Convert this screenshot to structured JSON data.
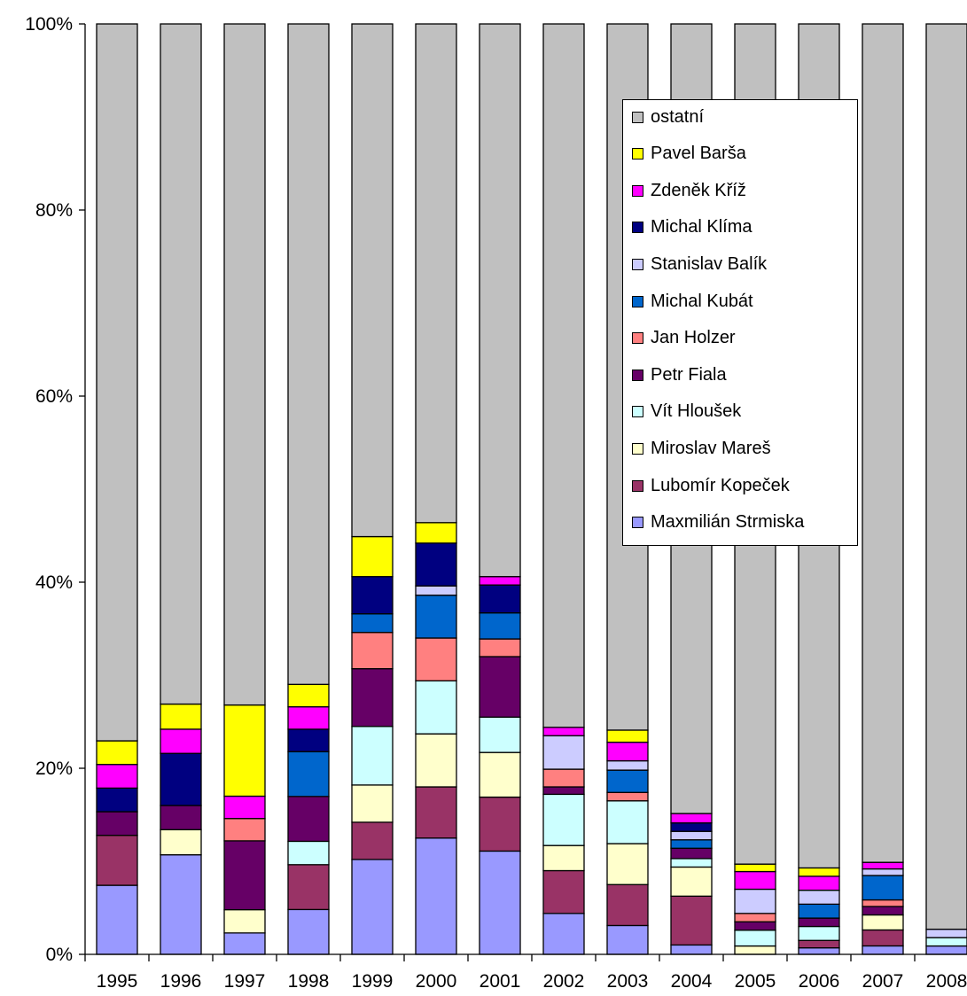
{
  "chart_data": {
    "type": "bar",
    "stacked": true,
    "normalized": true,
    "title": "",
    "xlabel": "",
    "ylabel": "",
    "ylim": [
      0,
      100
    ],
    "y_ticks": [
      "0%",
      "20%",
      "40%",
      "60%",
      "80%",
      "100%"
    ],
    "legend_position": "top-right",
    "categories": [
      "1995",
      "1996",
      "1997",
      "1998",
      "1999",
      "2000",
      "2001",
      "2002",
      "2003",
      "2004",
      "2005",
      "2006",
      "2007",
      "2008"
    ],
    "series": [
      {
        "name": "Maxmilián Strmiska",
        "color": "#9999FF",
        "values": [
          7.6,
          10.7,
          2.3,
          4.8,
          10.2,
          12.5,
          11.1,
          4.4,
          3.1,
          1.0,
          0.0,
          0.7,
          0.9,
          0.9
        ]
      },
      {
        "name": "Lubomír Kopeček",
        "color": "#993366",
        "values": [
          5.5,
          0.0,
          0.0,
          4.8,
          4.0,
          5.5,
          5.8,
          4.6,
          4.4,
          5.2,
          0.0,
          0.8,
          1.7,
          0.0
        ]
      },
      {
        "name": "Miroslav Mareš",
        "color": "#FFFFCC",
        "values": [
          0.0,
          2.7,
          2.5,
          0.0,
          4.0,
          5.7,
          4.8,
          2.7,
          4.4,
          3.1,
          0.9,
          0.0,
          1.6,
          0.0
        ]
      },
      {
        "name": "Vít Hloušek",
        "color": "#CCFFFF",
        "values": [
          0.0,
          0.0,
          0.0,
          2.5,
          6.3,
          5.7,
          3.8,
          5.5,
          4.6,
          0.9,
          1.7,
          1.5,
          0.0,
          0.9
        ]
      },
      {
        "name": "Petr Fiala",
        "color": "#660066",
        "values": [
          2.6,
          2.6,
          7.4,
          4.8,
          6.2,
          0.0,
          6.5,
          0.8,
          0.0,
          1.1,
          0.9,
          0.9,
          0.9,
          0.0
        ]
      },
      {
        "name": "Jan Holzer",
        "color": "#FF8080",
        "values": [
          0.0,
          0.0,
          2.4,
          0.0,
          3.9,
          4.6,
          1.9,
          1.9,
          0.9,
          0.0,
          0.9,
          0.0,
          0.7,
          0.0
        ]
      },
      {
        "name": "Michal Kubát",
        "color": "#0066CC",
        "values": [
          0.0,
          0.0,
          0.0,
          4.8,
          2.0,
          4.6,
          2.8,
          0.0,
          2.4,
          0.9,
          0.0,
          1.5,
          2.6,
          0.0
        ]
      },
      {
        "name": "Stanislav Balík",
        "color": "#CCCCFF",
        "values": [
          0.0,
          0.0,
          0.0,
          0.0,
          0.0,
          1.0,
          0.0,
          3.6,
          1.0,
          0.9,
          2.6,
          1.5,
          0.7,
          0.9
        ]
      },
      {
        "name": "Michal Klíma",
        "color": "#000080",
        "values": [
          2.6,
          5.6,
          0.0,
          2.4,
          4.0,
          4.6,
          3.0,
          0.0,
          0.0,
          0.9,
          0.0,
          0.0,
          0.0,
          0.0
        ]
      },
      {
        "name": "Zdeněk Kříž",
        "color": "#FF00FF",
        "values": [
          2.6,
          2.6,
          2.4,
          2.4,
          0.0,
          0.0,
          0.9,
          0.9,
          2.0,
          1.0,
          1.9,
          1.5,
          0.7,
          0.0
        ]
      },
      {
        "name": "Pavel Barša",
        "color": "#FFFF00",
        "values": [
          2.6,
          2.7,
          9.8,
          2.4,
          4.3,
          2.2,
          0.0,
          0.0,
          1.3,
          0.0,
          0.8,
          0.9,
          0.0,
          0.0
        ]
      },
      {
        "name": "ostatní",
        "color": "#C0C0C0",
        "values": [
          78.9,
          73.1,
          73.2,
          70.7,
          55.1,
          53.6,
          59.4,
          75.6,
          75.9,
          84.1,
          90.3,
          90.8,
          89.3,
          97.3
        ]
      }
    ]
  }
}
